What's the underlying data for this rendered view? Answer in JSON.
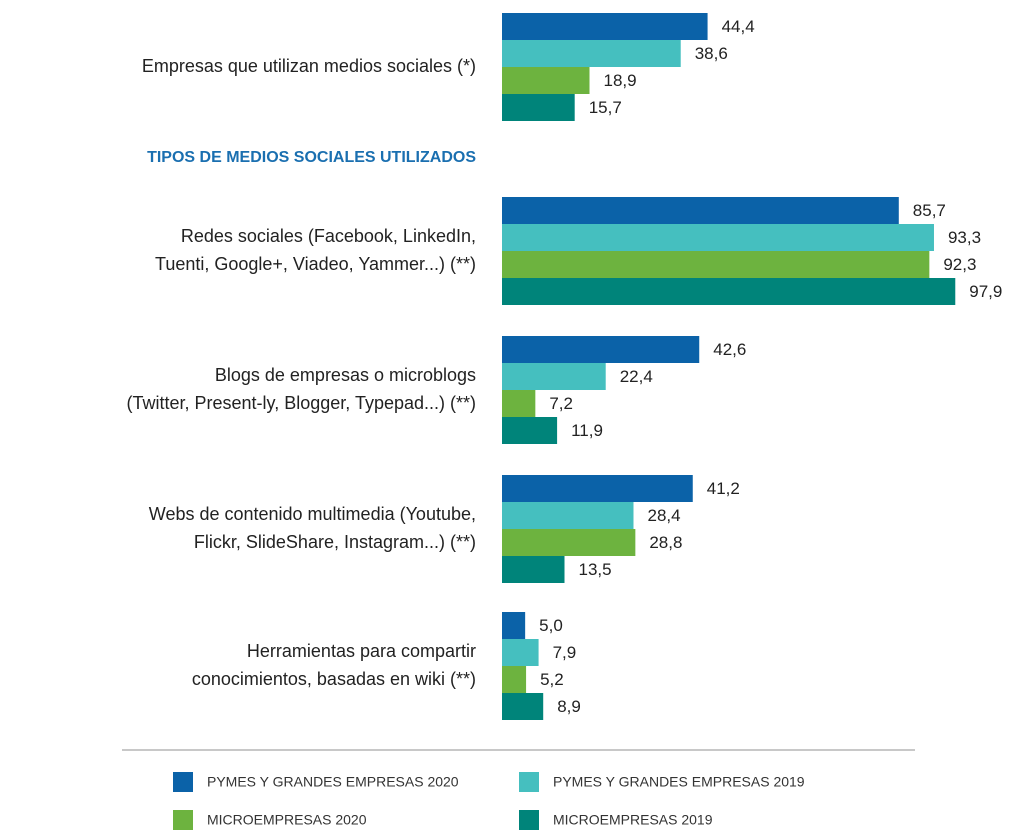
{
  "chart_data": {
    "type": "hbar",
    "annotation": "TIPOS DE MEDIOS SOCIALES UTILIZADOS",
    "categories": [
      "Empresas que utilizan medios sociales (*)",
      "Redes sociales (Facebook, LinkedIn,\nTuenti, Google+, Viadeo, Yammer...) (**)",
      "Blogs de empresas o microblogs\n(Twitter, Present-ly, Blogger, Typepad...) (**)",
      "Webs de contenido multimedia (Youtube,\nFlickr,  SlideShare, Instagram...) (**)",
      "Herramientas para compartir\nconocimientos, basadas en wiki (**)"
    ],
    "series": [
      {
        "name": "PYMES Y GRANDES EMPRESAS 2020",
        "color": "#0b62a8",
        "values": [
          44.4,
          85.7,
          42.6,
          41.2,
          5.0
        ],
        "value_labels": [
          "44,4",
          "85,7",
          "42,6",
          "41,2",
          "5,0"
        ]
      },
      {
        "name": "PYMES Y GRANDES EMPRESAS 2019",
        "color": "#45bfbf",
        "values": [
          38.6,
          93.3,
          22.4,
          28.4,
          7.9
        ],
        "value_labels": [
          "38,6",
          "93,3",
          "22,4",
          "28,4",
          "7,9"
        ]
      },
      {
        "name": "MICROEMPRESAS 2020",
        "color": "#6db33f",
        "values": [
          18.9,
          92.3,
          7.2,
          28.8,
          5.2
        ],
        "value_labels": [
          "18,9",
          "92,3",
          "7,2",
          "28,8",
          "5,2"
        ]
      },
      {
        "name": "MICROEMPRESAS 2019",
        "color": "#00847a",
        "values": [
          15.7,
          97.9,
          11.9,
          13.5,
          8.9
        ],
        "value_labels": [
          "15,7",
          "97,9",
          "11,9",
          "13,5",
          "8,9"
        ]
      }
    ],
    "xlim": [
      0,
      100
    ]
  }
}
